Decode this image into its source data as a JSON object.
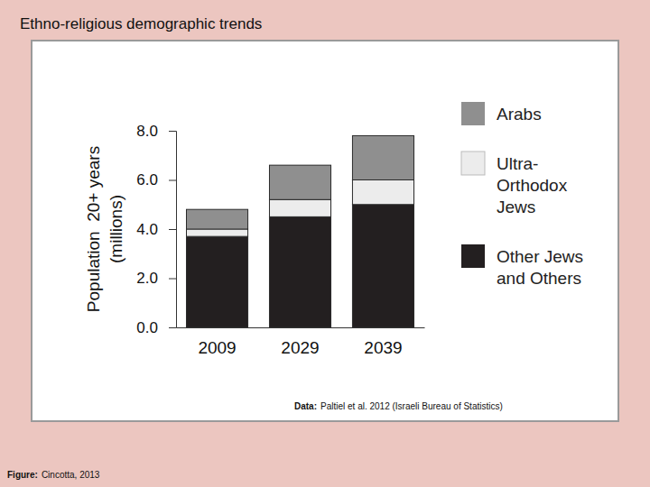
{
  "chart_data": {
    "type": "bar",
    "stacked": true,
    "title": "Ethno-religious demographic trends",
    "y_label": [
      "Population  20+ years",
      "(millions)"
    ],
    "categories": [
      "2009",
      "2029",
      "2039"
    ],
    "series": [
      {
        "name": "Other Jews and Others",
        "color": "#231f20",
        "values": [
          3.7,
          4.5,
          5.0
        ]
      },
      {
        "name": "Ultra-Orthodox Jews",
        "color": "#ececec",
        "values": [
          0.3,
          0.7,
          1.0
        ]
      },
      {
        "name": "Arabs",
        "color": "#8f8f8f",
        "values": [
          0.8,
          1.4,
          1.8
        ]
      }
    ],
    "ylim": [
      0,
      8
    ],
    "yticks": [
      {
        "value": 0,
        "label": "0.0"
      },
      {
        "value": 2,
        "label": "2.0"
      },
      {
        "value": 4,
        "label": "4.0"
      },
      {
        "value": 6,
        "label": "6.0"
      },
      {
        "value": 8,
        "label": "8.0"
      }
    ],
    "legend": "right",
    "grid": false,
    "annotations": [
      {
        "label": "Data:",
        "text": "Paltiel et al. 2012 (Israeli Bureau of Statistics)"
      },
      {
        "label": "Figure:",
        "text": "Cincotta, 2013"
      }
    ]
  }
}
